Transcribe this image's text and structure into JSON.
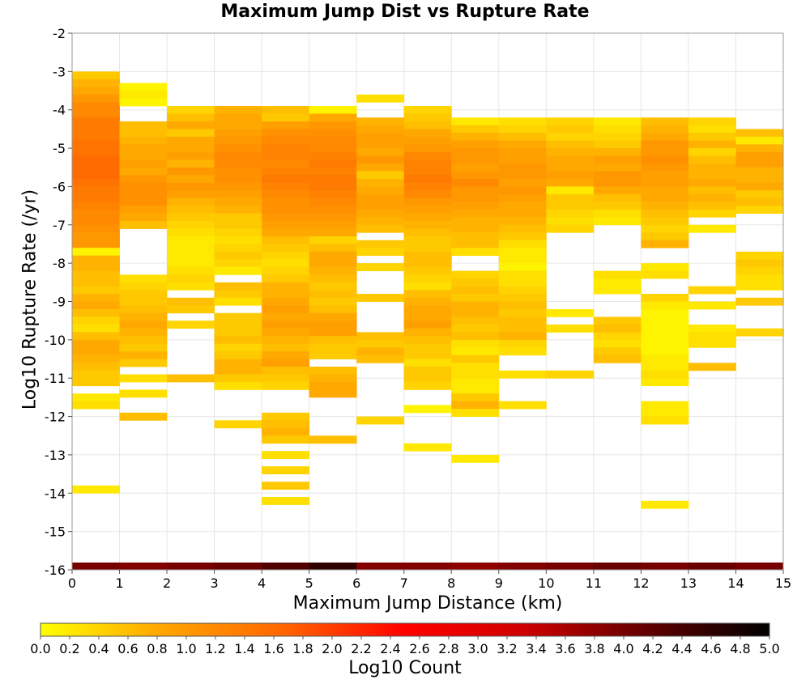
{
  "chart_data": {
    "type": "heatmap",
    "title": "Maximum Jump Dist vs Rupture Rate",
    "xlabel": "Maximum Jump Distance (km)",
    "ylabel": "Log10 Rupture Rate (/yr)",
    "colorbar_label": "Log10 Count",
    "xlim": [
      0,
      15
    ],
    "ylim": [
      -16,
      -2
    ],
    "x_ticks": [
      "0",
      "1",
      "2",
      "3",
      "4",
      "5",
      "6",
      "7",
      "8",
      "9",
      "10",
      "11",
      "12",
      "13",
      "14",
      "15"
    ],
    "y_ticks": [
      "-2",
      "-3",
      "-4",
      "-5",
      "-6",
      "-7",
      "-8",
      "-9",
      "-10",
      "-11",
      "-12",
      "-13",
      "-14",
      "-15",
      "-16"
    ],
    "color_ticks": [
      "0.0",
      "0.2",
      "0.4",
      "0.6",
      "0.8",
      "1.0",
      "1.2",
      "1.4",
      "1.6",
      "1.8",
      "2.0",
      "2.2",
      "2.4",
      "2.6",
      "2.8",
      "3.0",
      "3.2",
      "3.4",
      "3.6",
      "3.8",
      "4.0",
      "4.2",
      "4.4",
      "4.6",
      "4.8",
      "5.0"
    ],
    "color_range": [
      0,
      5
    ],
    "colormap": [
      "#ffff00",
      "#ffa500",
      "#ff6600",
      "#ff0000",
      "#cc0000",
      "#600000",
      "#000000"
    ],
    "grid": true,
    "bin_width_x": 1,
    "bin_height_y": 0.2,
    "columns": [
      {
        "x": 0,
        "y_top": -3.0,
        "values": [
          0.5,
          0.7,
          0.8,
          1.0,
          1.2,
          1.2,
          1.4,
          1.4,
          1.4,
          1.5,
          1.5,
          1.6,
          1.6,
          1.6,
          1.5,
          1.4,
          1.4,
          1.3,
          1.2,
          1.2,
          1.1,
          1.0,
          1.0,
          0.1,
          0.7,
          0.7,
          0.6,
          0.6,
          0.5,
          0.7,
          0.8,
          0.6,
          0.4,
          0.3,
          0.6,
          0.8,
          0.8,
          0.7,
          0.6,
          0.5,
          0.5,
          null,
          0.2,
          0.3,
          null,
          null,
          null,
          null,
          null,
          null,
          null,
          null,
          null,
          null,
          0.2
        ]
      },
      {
        "x": 1,
        "y_top": -3.3,
        "values": [
          0.1,
          0.2,
          0.1,
          null,
          null,
          0.6,
          0.6,
          0.7,
          0.8,
          0.8,
          0.9,
          0.8,
          1.0,
          1.1,
          1.1,
          1.1,
          0.9,
          0.8,
          0.6,
          null,
          null,
          null,
          null,
          null,
          null,
          0.3,
          0.4,
          0.5,
          0.5,
          0.6,
          0.7,
          0.8,
          0.7,
          0.6,
          0.5,
          0.7,
          0.5,
          null,
          0.3,
          null,
          0.3,
          null,
          null,
          0.6
        ]
      },
      {
        "x": 2,
        "y_top": -3.9,
        "values": [
          0.4,
          0.6,
          0.8,
          0.5,
          0.8,
          0.8,
          0.9,
          0.7,
          1.0,
          0.8,
          1.0,
          0.9,
          0.7,
          0.6,
          0.5,
          0.4,
          0.3,
          0.2,
          0.2,
          0.2,
          0.2,
          0.3,
          0.4,
          0.3,
          null,
          0.6,
          0.5,
          null,
          0.4,
          null,
          null,
          null,
          null,
          null,
          null,
          0.6
        ]
      },
      {
        "x": 3,
        "y_top": -3.9,
        "values": [
          0.7,
          0.8,
          0.8,
          0.9,
          1.0,
          1.1,
          1.2,
          1.2,
          1.1,
          1.1,
          1.0,
          0.9,
          0.8,
          0.7,
          0.5,
          0.5,
          0.4,
          0.3,
          0.4,
          0.5,
          0.4,
          0.2,
          null,
          0.6,
          0.5,
          0.3,
          null,
          0.5,
          0.5,
          0.5,
          0.6,
          0.4,
          0.5,
          0.7,
          0.7,
          0.5,
          0.3,
          null,
          null,
          null,
          null,
          0.4
        ]
      },
      {
        "x": 4,
        "y_top": -3.9,
        "values": [
          0.6,
          0.5,
          0.9,
          1.1,
          1.2,
          1.3,
          1.3,
          1.2,
          1.3,
          1.4,
          1.3,
          1.2,
          1.1,
          1.1,
          1.0,
          0.9,
          0.8,
          0.6,
          0.5,
          0.4,
          0.3,
          0.4,
          0.5,
          0.7,
          0.7,
          0.8,
          0.9,
          0.8,
          0.9,
          0.8,
          0.7,
          0.6,
          0.8,
          0.9,
          0.6,
          0.5,
          0.4,
          null,
          null,
          null,
          0.5,
          0.6,
          0.7,
          0.5,
          null,
          0.3,
          null,
          0.4,
          null,
          0.5,
          null,
          0.3
        ]
      },
      {
        "x": 5,
        "y_top": -3.9,
        "values": [
          0.1,
          0.8,
          1.0,
          1.1,
          1.2,
          1.2,
          1.3,
          1.4,
          1.3,
          1.4,
          1.4,
          1.3,
          1.2,
          1.1,
          1.0,
          0.9,
          0.8,
          0.4,
          0.6,
          0.8,
          0.8,
          0.7,
          0.6,
          0.5,
          0.6,
          0.5,
          0.6,
          0.8,
          0.9,
          0.9,
          0.6,
          0.5,
          0.5,
          null,
          0.6,
          0.7,
          0.8,
          0.8,
          null,
          null,
          null,
          null,
          null,
          0.6
        ]
      },
      {
        "x": 6,
        "y_top": -3.6,
        "values": [
          0.3,
          null,
          null,
          0.7,
          0.8,
          0.9,
          0.9,
          0.8,
          1.0,
          0.8,
          0.5,
          0.7,
          0.8,
          0.9,
          0.9,
          0.8,
          0.7,
          0.6,
          null,
          0.5,
          0.4,
          null,
          0.4,
          null,
          null,
          null,
          0.5,
          null,
          null,
          null,
          null,
          0.6,
          0.5,
          0.7,
          0.6,
          null,
          null,
          null,
          null,
          null,
          null,
          null,
          0.4
        ]
      },
      {
        "x": 7,
        "y_top": -3.9,
        "values": [
          0.4,
          0.5,
          0.6,
          0.8,
          0.9,
          1.0,
          1.2,
          1.3,
          1.3,
          1.4,
          1.3,
          1.2,
          1.0,
          0.9,
          0.8,
          0.7,
          0.6,
          0.5,
          0.5,
          0.6,
          0.6,
          0.5,
          0.4,
          0.3,
          0.6,
          0.7,
          0.8,
          0.8,
          0.9,
          0.7,
          0.6,
          0.5,
          0.5,
          0.3,
          0.5,
          0.5,
          0.4,
          null,
          null,
          0.1,
          null,
          null,
          null,
          null,
          0.2
        ]
      },
      {
        "x": 8,
        "y_top": -4.2,
        "values": [
          0.2,
          0.5,
          0.7,
          0.9,
          1.0,
          1.0,
          0.9,
          1.0,
          1.2,
          1.0,
          1.0,
          0.9,
          0.8,
          0.7,
          0.7,
          0.6,
          0.6,
          0.3,
          null,
          null,
          0.4,
          0.5,
          0.6,
          0.5,
          0.7,
          0.7,
          0.6,
          0.5,
          0.6,
          0.3,
          0.2,
          0.5,
          0.3,
          0.3,
          0.2,
          0.2,
          0.5,
          0.7,
          0.3,
          null,
          null,
          null,
          null,
          null,
          0.2
        ]
      },
      {
        "x": 9,
        "y_top": -4.2,
        "values": [
          0.3,
          0.4,
          0.6,
          0.8,
          0.9,
          0.9,
          1.0,
          1.0,
          0.9,
          1.0,
          0.9,
          0.8,
          0.8,
          0.7,
          0.6,
          0.5,
          0.3,
          0.2,
          0.2,
          0.1,
          0.3,
          0.3,
          0.4,
          0.5,
          0.6,
          0.5,
          0.6,
          0.6,
          0.7,
          0.4,
          0.3,
          null,
          null,
          0.3,
          null,
          null,
          null,
          0.3
        ]
      },
      {
        "x": 10,
        "y_top": -4.2,
        "values": [
          0.4,
          0.5,
          0.4,
          0.6,
          0.7,
          0.8,
          0.8,
          0.9,
          0.8,
          0.2,
          0.5,
          0.5,
          0.4,
          0.3,
          0.4,
          null,
          null,
          null,
          null,
          null,
          null,
          null,
          null,
          null,
          null,
          0.2,
          null,
          0.3,
          null,
          null,
          null,
          null,
          null,
          0.4
        ]
      },
      {
        "x": 11,
        "y_top": -4.2,
        "values": [
          0.2,
          0.3,
          0.4,
          0.5,
          0.7,
          0.9,
          0.8,
          1.0,
          1.0,
          0.8,
          0.6,
          0.5,
          0.3,
          0.2,
          null,
          null,
          null,
          null,
          null,
          null,
          0.3,
          0.2,
          0.2,
          null,
          null,
          null,
          0.5,
          0.6,
          0.4,
          0.3,
          0.5,
          0.6
        ]
      },
      {
        "x": 12,
        "y_top": -4.2,
        "values": [
          0.6,
          0.7,
          0.8,
          1.0,
          1.0,
          1.1,
          1.0,
          0.9,
          0.9,
          0.8,
          0.8,
          0.7,
          0.6,
          0.5,
          0.4,
          0.5,
          0.7,
          null,
          null,
          0.2,
          0.3,
          null,
          null,
          0.4,
          0.2,
          0.1,
          0.1,
          0.1,
          0.1,
          0.1,
          0.1,
          0.2,
          0.2,
          0.3,
          0.2,
          null,
          null,
          0.2,
          0.2,
          0.3,
          null,
          null,
          null,
          null,
          null,
          null,
          null,
          null,
          null,
          null,
          0.2
        ]
      },
      {
        "x": 13,
        "y_top": -4.2,
        "values": [
          0.4,
          0.3,
          0.5,
          0.7,
          0.4,
          0.6,
          0.7,
          0.7,
          0.8,
          0.6,
          0.7,
          0.6,
          0.4,
          null,
          0.2,
          null,
          null,
          null,
          null,
          null,
          null,
          null,
          0.4,
          null,
          0.2,
          null,
          null,
          0.2,
          0.3,
          0.3,
          null,
          null,
          0.6
        ]
      },
      {
        "x": 14,
        "y_top": -4.5,
        "values": [
          0.6,
          0.2,
          0.7,
          0.9,
          0.9,
          0.7,
          0.7,
          0.8,
          0.5,
          0.6,
          0.4,
          null,
          null,
          null,
          null,
          null,
          0.4,
          0.5,
          0.4,
          0.3,
          0.3,
          null,
          0.5,
          null,
          null,
          null,
          0.4
        ]
      }
    ],
    "marginal_strip": [
      4.0,
      3.9,
      4.0,
      4.1,
      4.3,
      4.6,
      3.9,
      3.9,
      3.8,
      3.9,
      4.0,
      4.1,
      4.0,
      4.1,
      4.0
    ]
  }
}
